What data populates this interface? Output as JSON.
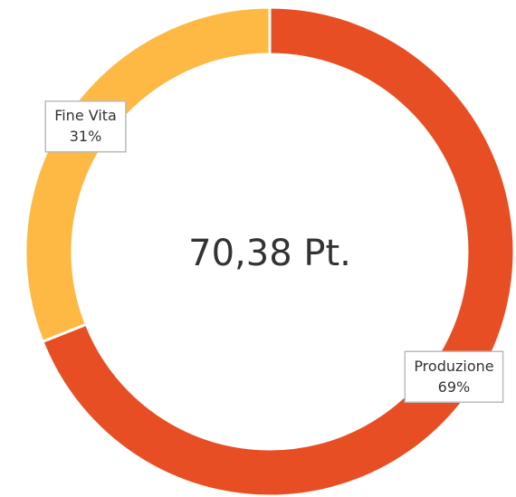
{
  "chart_data": {
    "type": "pie",
    "donut": true,
    "center_text": "70,38 Pt.",
    "categories": [
      "Produzione",
      "Fine Vita"
    ],
    "values": [
      69,
      31
    ],
    "value_labels": [
      "69%",
      "31%"
    ],
    "colors": [
      "#e84e23",
      "#fdb944"
    ]
  }
}
